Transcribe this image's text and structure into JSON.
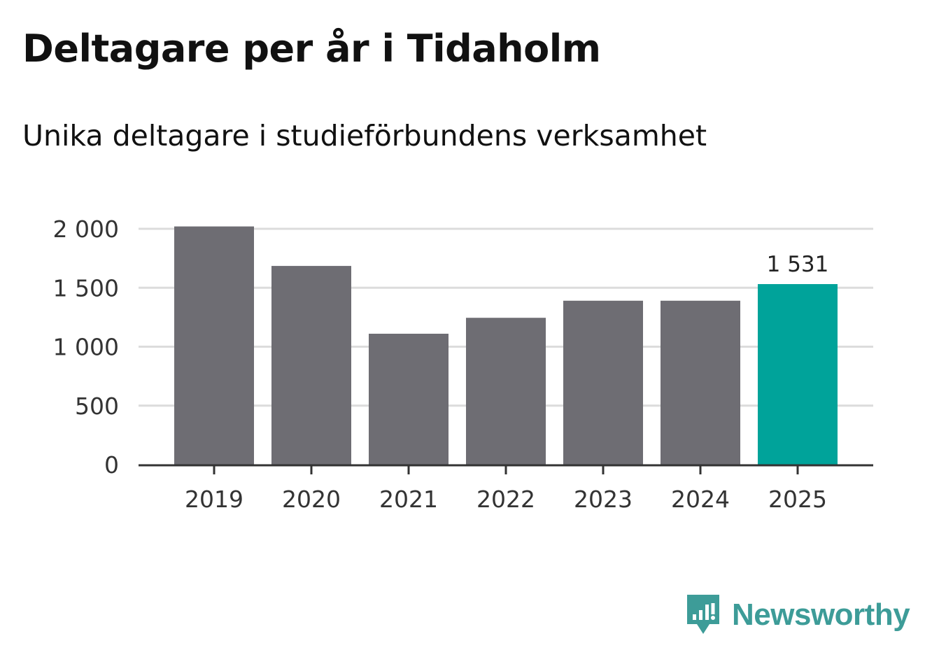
{
  "title": "Deltagare per år i Tidaholm",
  "subtitle": "Unika deltagare i studieförbundens verksamhet",
  "brand": {
    "name": "Newsworthy",
    "icon": "newsworthy-logo-icon",
    "color": "#3d9c98"
  },
  "colors": {
    "bar": "#6e6d73",
    "highlight": "#00a39a",
    "grid": "#dcdcdc",
    "axis": "#333333"
  },
  "chart_data": {
    "type": "bar",
    "title": "Deltagare per år i Tidaholm",
    "subtitle": "Unika deltagare i studieförbundens verksamhet",
    "xlabel": "",
    "ylabel": "",
    "categories": [
      "2019",
      "2020",
      "2021",
      "2022",
      "2023",
      "2024",
      "2025"
    ],
    "values": [
      2020,
      1685,
      1110,
      1245,
      1390,
      1390,
      1531
    ],
    "highlight_index": 6,
    "annotations": [
      {
        "category": "2025",
        "text": "1 531"
      }
    ],
    "ylim": [
      0,
      2000
    ],
    "yticks": [
      0,
      500,
      1000,
      1500,
      2000
    ],
    "ytick_labels": [
      "0",
      "500",
      "1 000",
      "1 500",
      "2 000"
    ],
    "grid": true,
    "legend": "none"
  }
}
